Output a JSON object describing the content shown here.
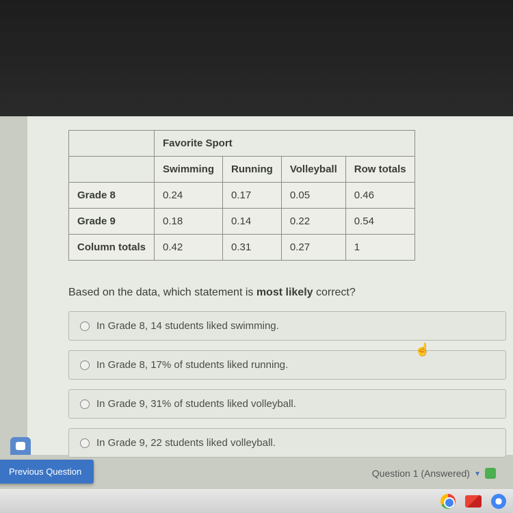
{
  "table": {
    "title": "Favorite Sport",
    "columns": [
      "Swimming",
      "Running",
      "Volleyball",
      "Row totals"
    ],
    "rows": [
      {
        "label": "Grade 8",
        "cells": [
          "0.24",
          "0.17",
          "0.05",
          "0.46"
        ]
      },
      {
        "label": "Grade 9",
        "cells": [
          "0.18",
          "0.14",
          "0.22",
          "0.54"
        ]
      },
      {
        "label": "Column totals",
        "cells": [
          "0.42",
          "0.31",
          "0.27",
          "1"
        ]
      }
    ]
  },
  "question": {
    "prefix": "Based on the data, which statement is ",
    "emph": "most likely",
    "suffix": " correct?"
  },
  "options": [
    "In Grade 8, 14 students liked swimming.",
    "In Grade 8, 17% of students liked running.",
    "In Grade 9, 31% of students liked volleyball.",
    "In Grade 9, 22 students liked volleyball."
  ],
  "nav": {
    "prev": "Previous Question",
    "status": "Question 1 (Answered)"
  }
}
